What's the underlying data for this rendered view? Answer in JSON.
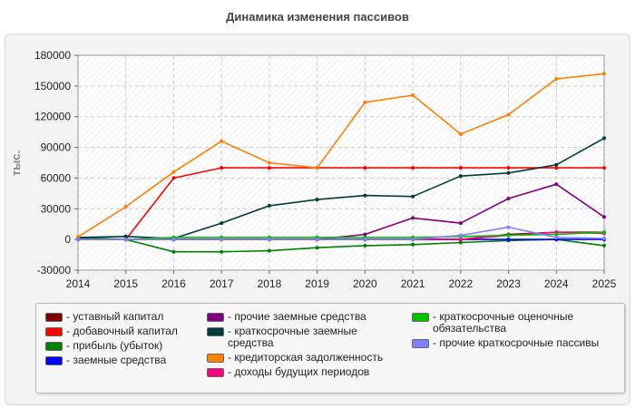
{
  "chart_data": {
    "type": "line",
    "title": "Динамика изменения пассивов",
    "ylabel": "тыс.",
    "xlabel": "",
    "x": [
      2014,
      2015,
      2016,
      2017,
      2018,
      2019,
      2020,
      2021,
      2022,
      2023,
      2024,
      2025
    ],
    "ylim": [
      -30000,
      180000
    ],
    "yticks": [
      -30000,
      0,
      30000,
      60000,
      90000,
      120000,
      150000,
      180000
    ],
    "grid": true,
    "legend_position": "bottom",
    "series": [
      {
        "name": "- уставный капитал",
        "color": "#7a0000",
        "values": [
          10,
          10,
          10,
          10,
          10,
          10,
          10,
          10,
          10,
          5000,
          7000,
          7000
        ]
      },
      {
        "name": "- добавочный капитал",
        "color": "#ff0000",
        "values": [
          0,
          0,
          60000,
          70000,
          70000,
          70000,
          70000,
          70000,
          70000,
          70000,
          70000,
          70000
        ]
      },
      {
        "name": "- прибыль (убыток)",
        "color": "#008000",
        "values": [
          2000,
          0,
          -12000,
          -12000,
          -11000,
          -8000,
          -6000,
          -5000,
          -3000,
          -1000,
          0,
          -6000
        ]
      },
      {
        "name": "- заемные средства",
        "color": "#0000ff",
        "values": [
          0,
          0,
          0,
          0,
          0,
          0,
          0,
          0,
          0,
          0,
          0,
          0
        ]
      },
      {
        "name": "- прочие заемные средства",
        "color": "#800080",
        "values": [
          0,
          0,
          0,
          0,
          0,
          0,
          5000,
          21000,
          16000,
          40000,
          54000,
          22000
        ]
      },
      {
        "name": "- краткосрочные заемные средства",
        "color": "#003c3c",
        "values": [
          2000,
          3000,
          1000,
          16000,
          33000,
          39000,
          43000,
          42000,
          62000,
          65000,
          73000,
          99000
        ]
      },
      {
        "name": "- кредиторская задолженность",
        "color": "#ff8000",
        "values": [
          2500,
          32000,
          66000,
          96000,
          75000,
          70000,
          134000,
          141000,
          103000,
          122000,
          157000,
          162000
        ]
      },
      {
        "name": "- доходы будущих периодов",
        "color": "#ff0080",
        "values": [
          0,
          0,
          0,
          0,
          0,
          0,
          0,
          0,
          0,
          4000,
          7000,
          6000
        ]
      },
      {
        "name": "- краткосрочные оценочные обязательства",
        "color": "#00c000",
        "values": [
          0,
          0,
          2000,
          2000,
          2000,
          2000,
          2000,
          2000,
          3000,
          4000,
          5000,
          7000
        ]
      },
      {
        "name": "- прочие краткосрочные пассивы",
        "color": "#8080ff",
        "values": [
          0,
          0,
          0,
          0,
          0,
          0,
          0,
          0,
          4000,
          12000,
          2000,
          1000
        ]
      }
    ]
  }
}
